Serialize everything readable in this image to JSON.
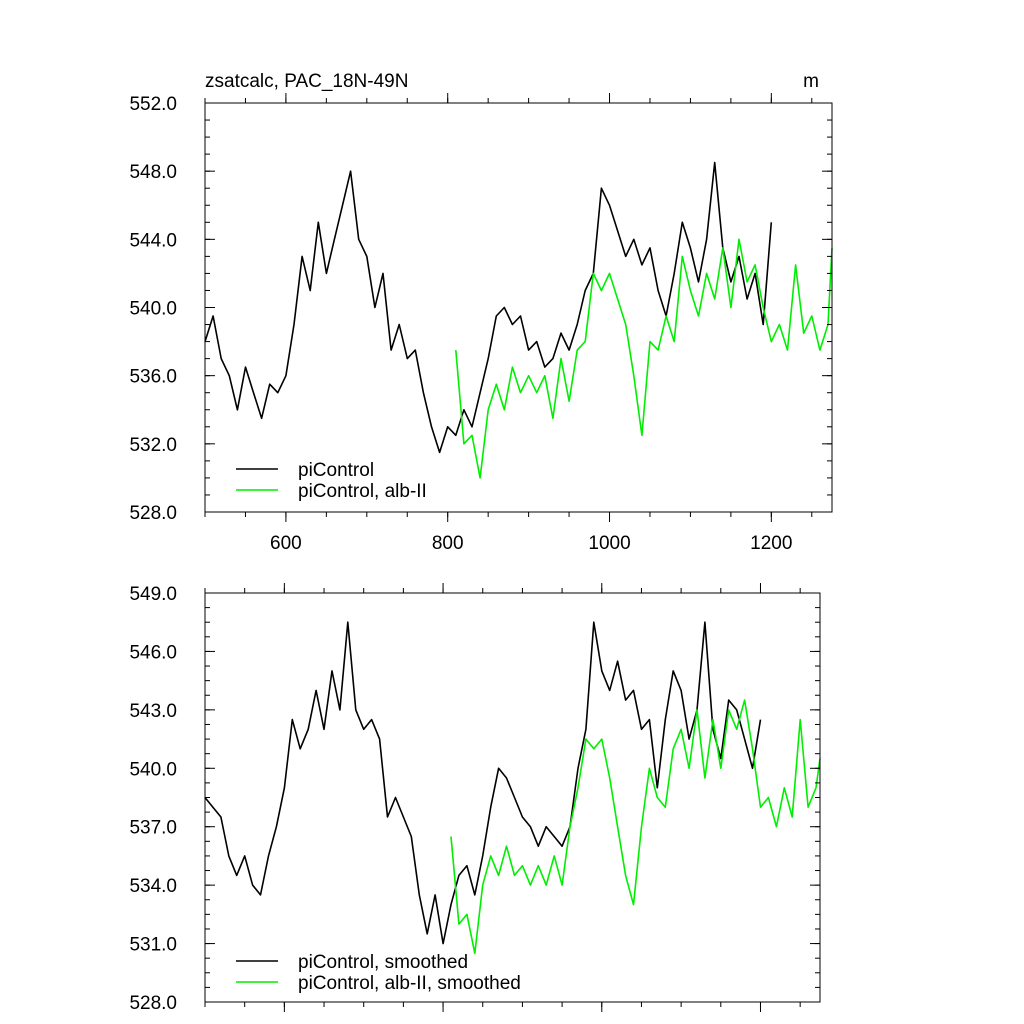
{
  "colors": {
    "control": "#000000",
    "alb": "#00ee00",
    "axis": "#000000",
    "background": "#ffffff"
  },
  "chart_data": [
    {
      "type": "line",
      "title": "zsatcalc, PAC_18N-49N",
      "subtitle": "m",
      "xlim": [
        500,
        1275
      ],
      "ylim": [
        528,
        552
      ],
      "x_ticks": [
        600,
        800,
        1000,
        1200
      ],
      "x_tick_labels": [
        "600",
        "800",
        "1000",
        "1200"
      ],
      "y_ticks": [
        528,
        532,
        536,
        540,
        544,
        548,
        552
      ],
      "y_tick_labels": [
        "528.0",
        "532.0",
        "536.0",
        "540.0",
        "544.0",
        "548.0",
        "552.0"
      ],
      "legend_position": "bottom-left",
      "series": [
        {
          "name": "piControl",
          "color": "#000000",
          "x": [
            500,
            510,
            520,
            530,
            540,
            550,
            560,
            570,
            580,
            590,
            600,
            610,
            620,
            630,
            640,
            650,
            660,
            670,
            680,
            690,
            700,
            710,
            720,
            730,
            740,
            750,
            760,
            770,
            780,
            790,
            800,
            810,
            820,
            830,
            840,
            850,
            860,
            870,
            880,
            890,
            900,
            910,
            920,
            930,
            940,
            950,
            960,
            970,
            980,
            990,
            1000,
            1010,
            1020,
            1030,
            1040,
            1050,
            1060,
            1070,
            1080,
            1090,
            1100,
            1110,
            1120,
            1130,
            1140,
            1150,
            1160,
            1170,
            1180,
            1190,
            1200
          ],
          "y": [
            538.0,
            539.5,
            537.0,
            536.0,
            534.0,
            536.5,
            535.0,
            533.5,
            535.5,
            535.0,
            536.0,
            539.0,
            543.0,
            541.0,
            545.0,
            542.0,
            544.0,
            546.0,
            548.0,
            544.0,
            543.0,
            540.0,
            542.0,
            537.5,
            539.0,
            537.0,
            537.5,
            535.0,
            533.0,
            531.5,
            533.0,
            532.5,
            534.0,
            533.0,
            535.0,
            537.0,
            539.5,
            540.0,
            539.0,
            539.5,
            537.5,
            538.0,
            536.5,
            537.0,
            538.5,
            537.5,
            539.0,
            541.0,
            542.0,
            547.0,
            546.0,
            544.5,
            543.0,
            544.0,
            542.5,
            543.5,
            541.0,
            539.5,
            542.0,
            545.0,
            543.5,
            541.5,
            544.0,
            548.5,
            543.5,
            541.5,
            543.0,
            540.5,
            542.0,
            539.0,
            545.0
          ]
        },
        {
          "name": "piControl, alb-II",
          "color": "#00ee00",
          "x": [
            810,
            820,
            830,
            840,
            850,
            860,
            870,
            880,
            890,
            900,
            910,
            920,
            930,
            940,
            950,
            960,
            970,
            980,
            990,
            1000,
            1010,
            1020,
            1030,
            1040,
            1050,
            1060,
            1070,
            1080,
            1090,
            1100,
            1110,
            1120,
            1130,
            1140,
            1150,
            1160,
            1170,
            1180,
            1190,
            1200,
            1210,
            1220,
            1230,
            1240,
            1250,
            1260,
            1270,
            1275
          ],
          "y": [
            537.5,
            532.0,
            532.5,
            530.0,
            534.0,
            535.5,
            534.0,
            536.5,
            535.0,
            536.0,
            535.0,
            536.0,
            533.5,
            537.0,
            534.5,
            537.5,
            538.0,
            542.0,
            541.0,
            542.0,
            540.5,
            539.0,
            536.0,
            532.5,
            538.0,
            537.5,
            539.5,
            538.0,
            543.0,
            541.0,
            539.5,
            542.0,
            540.5,
            543.5,
            540.0,
            544.0,
            541.5,
            542.5,
            540.0,
            538.0,
            539.0,
            537.5,
            542.5,
            538.5,
            539.5,
            537.5,
            539.0,
            543.5
          ]
        }
      ]
    },
    {
      "type": "line",
      "title": "",
      "subtitle": "",
      "xlim": [
        500,
        1275
      ],
      "ylim": [
        528,
        549
      ],
      "x_ticks": [
        600,
        800,
        1000,
        1200
      ],
      "x_tick_labels": [
        "",
        "",
        "",
        ""
      ],
      "y_ticks": [
        528,
        531,
        534,
        537,
        540,
        543,
        546,
        549
      ],
      "y_tick_labels": [
        "528.0",
        "531.0",
        "534.0",
        "537.0",
        "540.0",
        "543.0",
        "546.0",
        "549.0"
      ],
      "legend_position": "bottom-left",
      "series": [
        {
          "name": "piControl, smoothed",
          "color": "#000000",
          "x": [
            500,
            510,
            520,
            530,
            540,
            550,
            560,
            570,
            580,
            590,
            600,
            610,
            620,
            630,
            640,
            650,
            660,
            670,
            680,
            690,
            700,
            710,
            720,
            730,
            740,
            750,
            760,
            770,
            780,
            790,
            800,
            810,
            820,
            830,
            840,
            850,
            860,
            870,
            880,
            890,
            900,
            910,
            920,
            930,
            940,
            950,
            960,
            970,
            980,
            990,
            1000,
            1010,
            1020,
            1030,
            1040,
            1050,
            1060,
            1070,
            1080,
            1090,
            1100,
            1110,
            1120,
            1130,
            1140,
            1150,
            1160,
            1170,
            1180,
            1190,
            1200
          ],
          "y": [
            538.5,
            538.0,
            537.5,
            535.5,
            534.5,
            535.5,
            534.0,
            533.5,
            535.5,
            537.0,
            539.0,
            542.5,
            541.0,
            542.0,
            544.0,
            542.0,
            545.0,
            543.0,
            547.5,
            543.0,
            542.0,
            542.5,
            541.5,
            537.5,
            538.5,
            537.5,
            536.5,
            533.5,
            531.5,
            533.5,
            531.0,
            533.0,
            534.5,
            535.0,
            533.5,
            535.5,
            538.0,
            540.0,
            539.5,
            538.5,
            537.5,
            537.0,
            536.0,
            537.0,
            536.5,
            536.0,
            537.0,
            540.0,
            542.0,
            547.5,
            545.0,
            544.0,
            545.5,
            543.5,
            544.0,
            542.0,
            542.5,
            539.0,
            542.5,
            545.0,
            544.0,
            541.5,
            543.0,
            547.5,
            542.0,
            540.5,
            543.5,
            543.0,
            541.5,
            540.0,
            542.5
          ]
        },
        {
          "name": "piControl, alb-II, smoothed",
          "color": "#00ee00",
          "x": [
            810,
            820,
            830,
            840,
            850,
            860,
            870,
            880,
            890,
            900,
            910,
            920,
            930,
            940,
            950,
            960,
            970,
            980,
            990,
            1000,
            1010,
            1020,
            1030,
            1040,
            1050,
            1060,
            1070,
            1080,
            1090,
            1100,
            1110,
            1120,
            1130,
            1140,
            1150,
            1160,
            1170,
            1180,
            1190,
            1200,
            1210,
            1220,
            1230,
            1240,
            1250,
            1260,
            1270,
            1275
          ],
          "y": [
            536.5,
            532.0,
            532.5,
            530.5,
            534.0,
            535.5,
            534.5,
            536.0,
            534.5,
            535.0,
            534.0,
            535.0,
            534.0,
            535.5,
            534.0,
            537.0,
            539.0,
            541.5,
            541.0,
            541.5,
            539.5,
            537.0,
            534.5,
            533.0,
            537.0,
            540.0,
            538.5,
            538.0,
            541.0,
            542.0,
            540.0,
            543.0,
            539.5,
            542.5,
            540.0,
            543.0,
            542.0,
            543.5,
            541.0,
            538.0,
            538.5,
            537.0,
            539.0,
            537.5,
            542.5,
            538.0,
            539.0,
            540.5
          ]
        }
      ]
    }
  ]
}
